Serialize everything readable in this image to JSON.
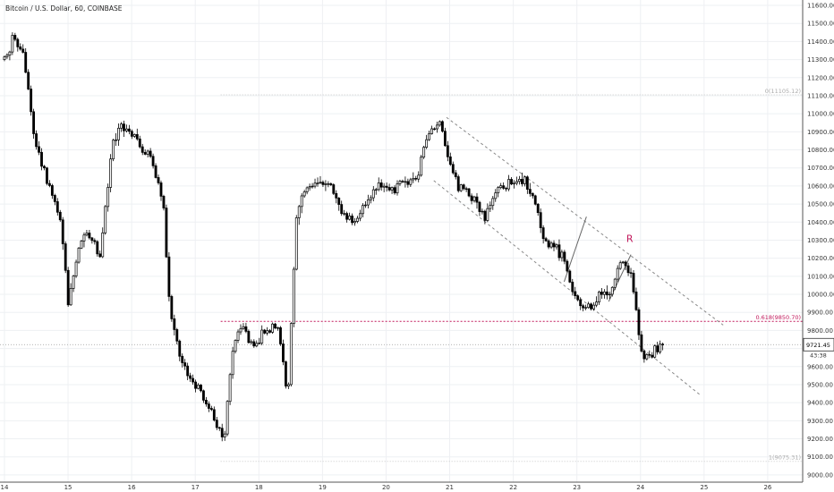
{
  "chart_data": {
    "type": "candlestick",
    "title": "Bitcoin / U.S. Dollar, 60, COINBASE",
    "ylim": [
      8960,
      11630
    ],
    "xlim": [
      13.93,
      26.55
    ],
    "y_ticks": [
      9000,
      9100,
      9200,
      9300,
      9400,
      9500,
      9600,
      9700,
      9800,
      9900,
      10000,
      10100,
      10200,
      10300,
      10400,
      10500,
      10600,
      10700,
      10800,
      10900,
      11000,
      11100,
      11200,
      11300,
      11400,
      11500,
      11600
    ],
    "x_ticks": [
      {
        "label": "14",
        "value": 14
      },
      {
        "label": "15",
        "value": 15
      },
      {
        "label": "16",
        "value": 16
      },
      {
        "label": "17",
        "value": 17
      },
      {
        "label": "18",
        "value": 18
      },
      {
        "label": "19",
        "value": 19
      },
      {
        "label": "20",
        "value": 20
      },
      {
        "label": "21",
        "value": 21
      },
      {
        "label": "22",
        "value": 22
      },
      {
        "label": "23",
        "value": 23
      },
      {
        "label": "24",
        "value": 24
      },
      {
        "label": "25",
        "value": 25
      },
      {
        "label": "26",
        "value": 26
      }
    ],
    "price_path": [
      [
        14.0,
        11300
      ],
      [
        14.15,
        11420
      ],
      [
        14.3,
        11320
      ],
      [
        14.45,
        10900
      ],
      [
        14.6,
        10700
      ],
      [
        14.75,
        10550
      ],
      [
        14.9,
        10380
      ],
      [
        15.0,
        9950
      ],
      [
        15.15,
        10250
      ],
      [
        15.3,
        10350
      ],
      [
        15.5,
        10200
      ],
      [
        15.7,
        10850
      ],
      [
        15.85,
        10950
      ],
      [
        16.0,
        10900
      ],
      [
        16.15,
        10800
      ],
      [
        16.3,
        10750
      ],
      [
        16.5,
        10500
      ],
      [
        16.6,
        9900
      ],
      [
        16.8,
        9600
      ],
      [
        16.95,
        9520
      ],
      [
        17.1,
        9450
      ],
      [
        17.3,
        9300
      ],
      [
        17.45,
        9180
      ],
      [
        17.6,
        9750
      ],
      [
        17.75,
        9790
      ],
      [
        17.95,
        9720
      ],
      [
        18.1,
        9800
      ],
      [
        18.3,
        9830
      ],
      [
        18.45,
        9420
      ],
      [
        18.6,
        10500
      ],
      [
        18.8,
        10600
      ],
      [
        19.0,
        10620
      ],
      [
        19.15,
        10600
      ],
      [
        19.3,
        10450
      ],
      [
        19.5,
        10400
      ],
      [
        19.7,
        10500
      ],
      [
        19.9,
        10600
      ],
      [
        20.1,
        10580
      ],
      [
        20.3,
        10610
      ],
      [
        20.5,
        10650
      ],
      [
        20.65,
        10900
      ],
      [
        20.85,
        10960
      ],
      [
        21.0,
        10700
      ],
      [
        21.15,
        10600
      ],
      [
        21.3,
        10570
      ],
      [
        21.55,
        10420
      ],
      [
        21.75,
        10600
      ],
      [
        22.0,
        10610
      ],
      [
        22.2,
        10620
      ],
      [
        22.35,
        10500
      ],
      [
        22.5,
        10280
      ],
      [
        22.65,
        10270
      ],
      [
        22.8,
        10200
      ],
      [
        22.95,
        9980
      ],
      [
        23.15,
        9920
      ],
      [
        23.35,
        9990
      ],
      [
        23.5,
        10000
      ],
      [
        23.7,
        10180
      ],
      [
        23.85,
        10120
      ],
      [
        23.95,
        9840
      ],
      [
        24.05,
        9650
      ],
      [
        24.2,
        9670
      ],
      [
        24.35,
        9721
      ]
    ],
    "annotations": {
      "fib_top": {
        "label": "0(11105.12)",
        "value": 11105.12,
        "x_start": 17.4
      },
      "fib_618": {
        "label": "0.618(9850.70)",
        "value": 9850.7,
        "x_start": 17.4
      },
      "fib_bottom": {
        "label": "1(9075.31)",
        "value": 9075.31,
        "x_start": 17.4
      },
      "r_label": "R",
      "channel_upper": [
        [
          20.95,
          10980
        ],
        [
          25.3,
          9830
        ]
      ],
      "channel_lower": [
        [
          20.75,
          10630
        ],
        [
          24.95,
          9440
        ]
      ],
      "wedge_1": [
        [
          22.8,
          10070
        ],
        [
          23.15,
          10430
        ]
      ],
      "wedge_2": [
        [
          23.5,
          9960
        ],
        [
          23.85,
          10220
        ]
      ]
    },
    "current_price": {
      "label": "9721.45",
      "value": 9721.45
    },
    "countdown": {
      "label": "43:38"
    }
  },
  "colors": {
    "candle": "#000000",
    "up_fill": "#ffffff",
    "grid": "#eef0f3",
    "fib": "#c2185b",
    "fib_faint": "#c8c8c8",
    "channel": "#888888",
    "axis_text": "#333333"
  }
}
